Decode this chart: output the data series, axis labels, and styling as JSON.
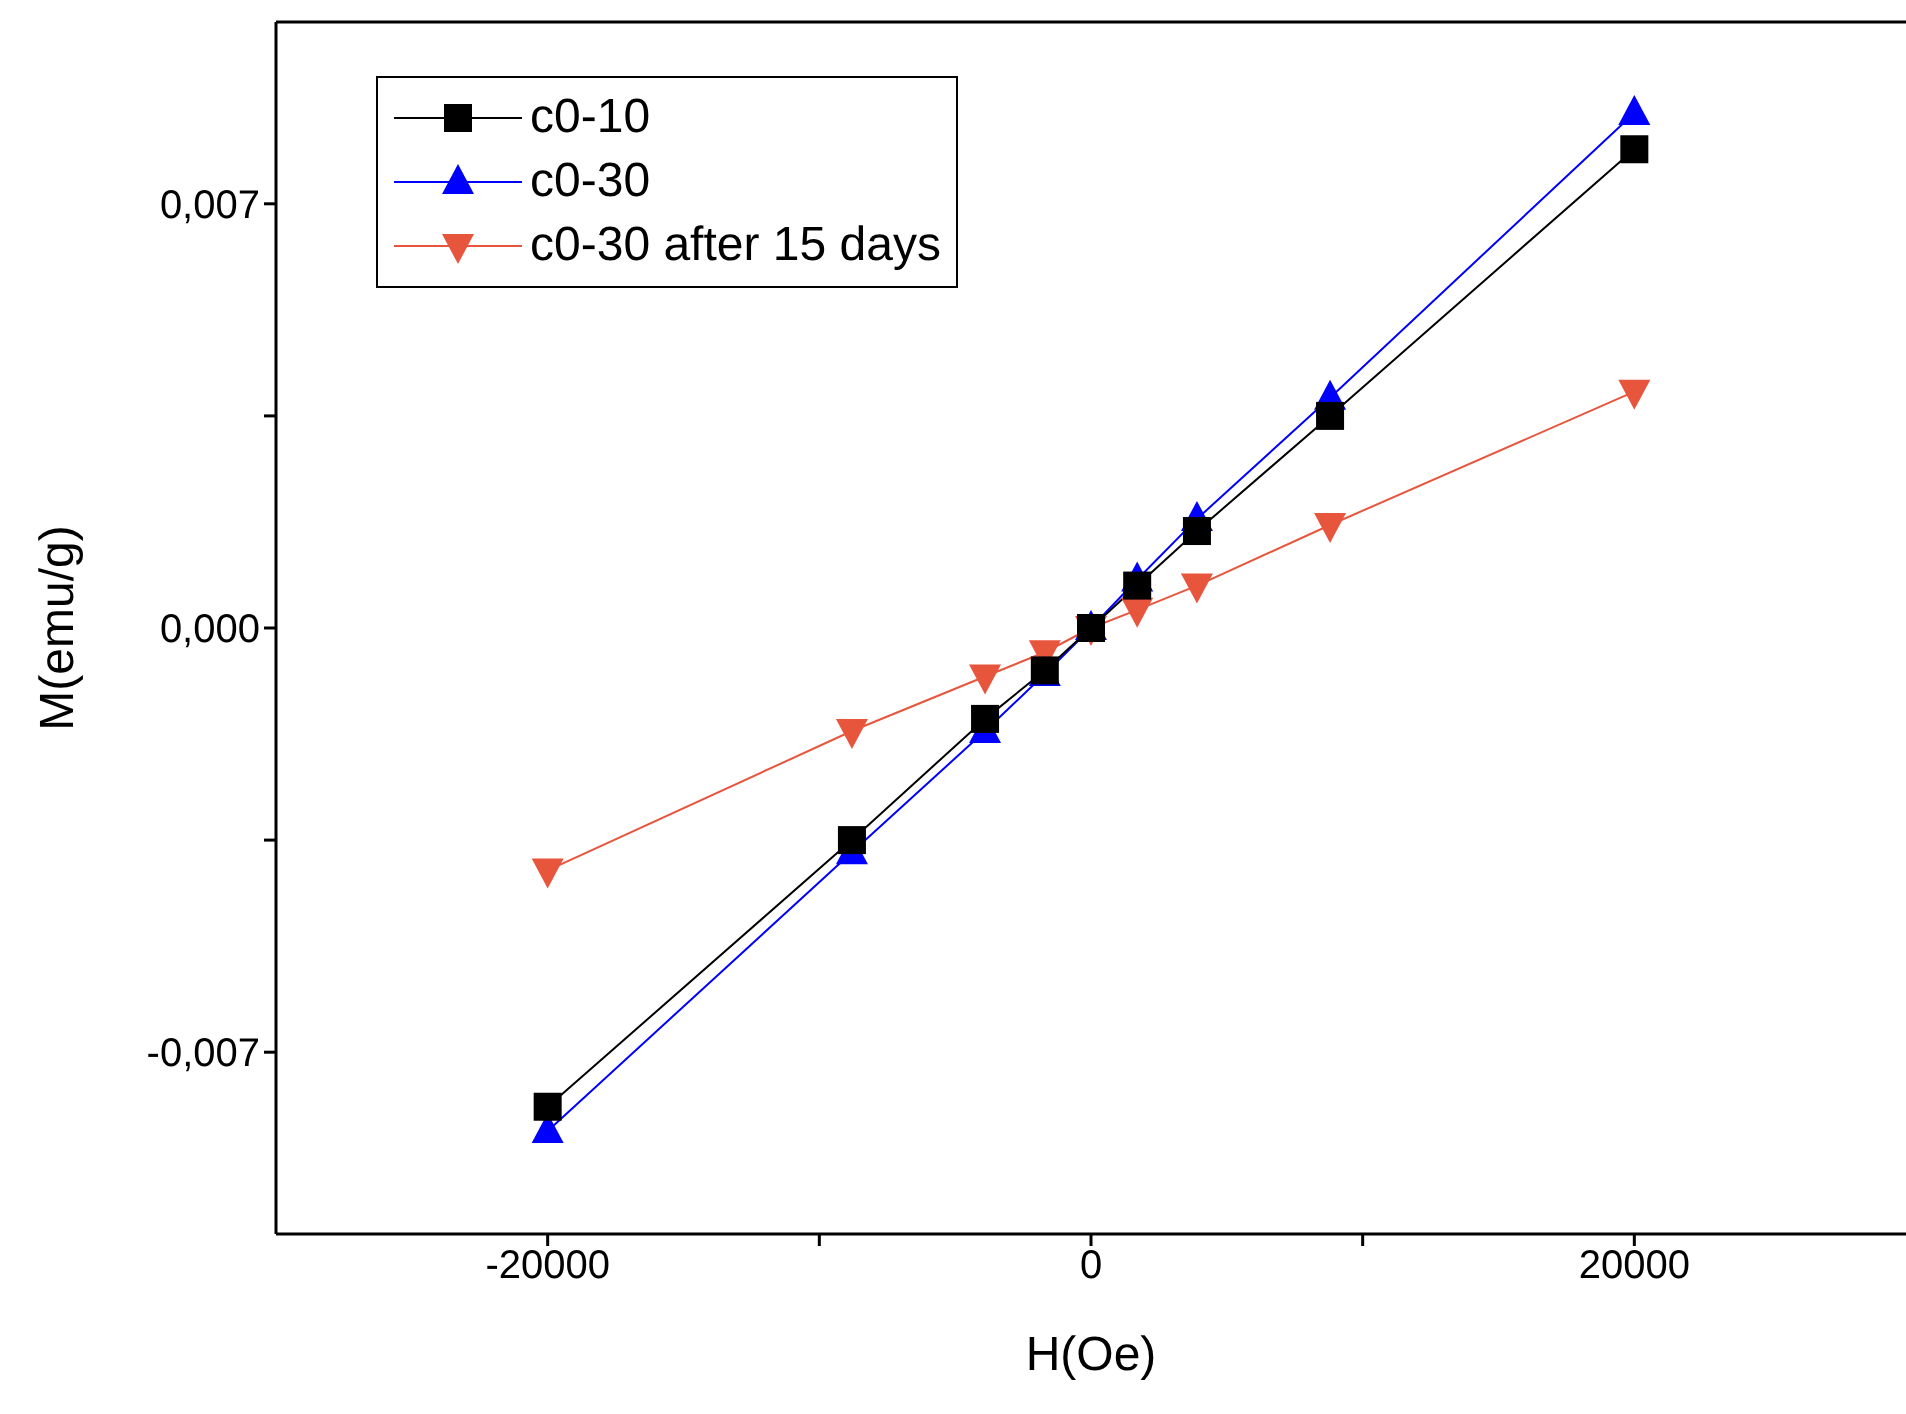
{
  "chart_data": {
    "type": "line",
    "xlabel": "H(Oe)",
    "ylabel": "M(emu/g)",
    "xlim": [
      -30000,
      30000
    ],
    "ylim": [
      -0.01,
      0.01
    ],
    "xticks": [
      -20000,
      {
        "value": -10000,
        "label": null
      },
      0,
      {
        "value": 10000,
        "label": null
      },
      20000
    ],
    "yticks": [
      {
        "value": -0.007,
        "label": "-0,007"
      },
      {
        "value": -0.0035,
        "label": null
      },
      {
        "value": 0,
        "label": "0,000"
      },
      {
        "value": 0.0035,
        "label": null
      },
      {
        "value": 0.007,
        "label": "0,007"
      }
    ],
    "legend": "top left",
    "grid": false,
    "line_style": "solid",
    "series": [
      {
        "name": "c0-10",
        "color": "#000000",
        "marker": "square",
        "x": [
          -20000,
          -8800,
          -3900,
          -1700,
          0,
          1700,
          3900,
          8800,
          20000
        ],
        "values": [
          -0.0079,
          -0.0035,
          -0.0015,
          -0.0007,
          0,
          0.0007,
          0.0016,
          0.0035,
          0.0079
        ]
      },
      {
        "name": "c0-30",
        "color": "#0000ff",
        "marker": "triangle",
        "x": [
          -20000,
          -8800,
          -3900,
          -1700,
          0,
          1700,
          3900,
          8800,
          20000
        ],
        "values": [
          -0.0083,
          -0.0037,
          -0.0017,
          -0.00076,
          0,
          0.0008,
          0.0018,
          0.0038,
          0.0085
        ]
      },
      {
        "name": "c0-30 after 15 days",
        "color": "#e8553d",
        "marker": "triangle-down",
        "x": [
          -20000,
          -8800,
          -3900,
          -1700,
          0,
          1700,
          3900,
          8800,
          20000
        ],
        "values": [
          -0.004,
          -0.0017,
          -0.0008,
          -0.0004,
          0,
          0.0003,
          0.0007,
          0.0017,
          0.0039
        ]
      }
    ]
  }
}
